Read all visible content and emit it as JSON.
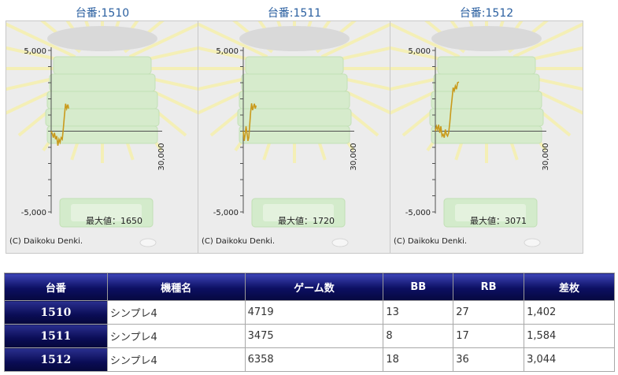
{
  "charts": [
    {
      "title": "台番:1510",
      "ytick_top": "5,000",
      "ytick_bottom": "-5,000",
      "xtick": "30,000",
      "max_label": "最大値：1650",
      "copyright": "(C) Daikoku Denki.",
      "chart_data": {
        "type": "line",
        "xlim": [
          0,
          30000
        ],
        "ylim": [
          -5000,
          5000
        ],
        "x": [
          0,
          300,
          600,
          900,
          1200,
          1500,
          1800,
          2100,
          2400,
          2700,
          3000,
          3300,
          3600,
          3900,
          4200,
          4500,
          4719
        ],
        "y": [
          0,
          -150,
          -400,
          -100,
          -500,
          -300,
          -900,
          -500,
          -700,
          -400,
          -500,
          200,
          1000,
          1700,
          1400,
          1650,
          1402
        ]
      }
    },
    {
      "title": "台番:1511",
      "ytick_top": "5,000",
      "ytick_bottom": "-5,000",
      "xtick": "30,000",
      "max_label": "最大値：1720",
      "copyright": "(C) Daikoku Denki.",
      "chart_data": {
        "type": "line",
        "xlim": [
          0,
          30000
        ],
        "ylim": [
          -5000,
          5000
        ],
        "x": [
          0,
          250,
          500,
          750,
          1000,
          1250,
          1500,
          1750,
          2000,
          2250,
          2500,
          2750,
          3000,
          3250,
          3475
        ],
        "y": [
          0,
          -600,
          -200,
          300,
          -100,
          -600,
          -400,
          400,
          1200,
          1720,
          1300,
          1500,
          1700,
          1400,
          1584
        ]
      }
    },
    {
      "title": "台番:1512",
      "ytick_top": "5,000",
      "ytick_bottom": "-5,000",
      "xtick": "30,000",
      "max_label": "最大値：3071",
      "copyright": "(C) Daikoku Denki.",
      "chart_data": {
        "type": "line",
        "xlim": [
          0,
          30000
        ],
        "ylim": [
          -5000,
          5000
        ],
        "x": [
          0,
          300,
          600,
          900,
          1200,
          1500,
          1800,
          2100,
          2400,
          2700,
          3000,
          3300,
          3600,
          3900,
          4200,
          4500,
          4800,
          5100,
          5400,
          5700,
          6000,
          6358
        ],
        "y": [
          0,
          300,
          100,
          400,
          -100,
          300,
          -300,
          -200,
          -400,
          100,
          -200,
          -300,
          -100,
          500,
          1300,
          2000,
          2700,
          2500,
          2800,
          2600,
          3000,
          3044
        ]
      }
    }
  ],
  "table": {
    "headers": [
      "台番",
      "機種名",
      "ゲーム数",
      "BB",
      "RB",
      "差枚"
    ],
    "rows": [
      [
        "1510",
        "シンプレ4",
        "4719",
        "13",
        "27",
        "1,402"
      ],
      [
        "1511",
        "シンプレ4",
        "3475",
        "8",
        "17",
        "1,584"
      ],
      [
        "1512",
        "シンプレ4",
        "6358",
        "18",
        "36",
        "3,044"
      ]
    ]
  },
  "colors": {
    "line": "#c99a1c",
    "header_bg": "#0c0f62",
    "bg": "#ececec"
  }
}
